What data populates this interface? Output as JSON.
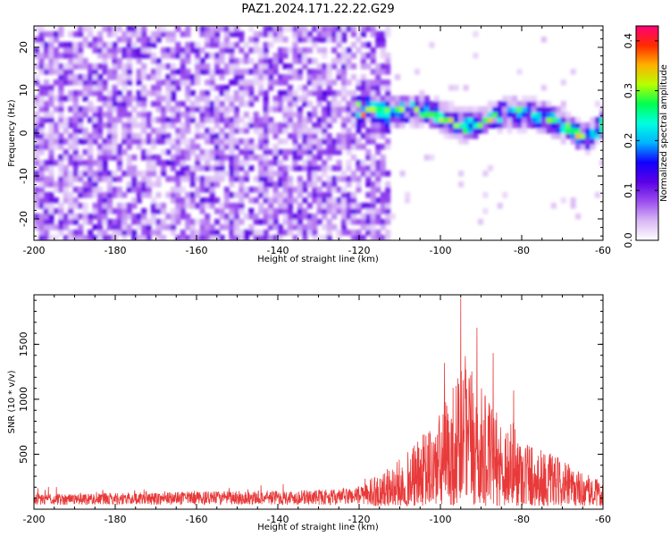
{
  "title": "PAZ1.2024.171.22.22.G29",
  "colors": {
    "line": "#e83a3a",
    "colormap": [
      "#ffffff",
      "#d9b8f5",
      "#9b4df0",
      "#5a00e6",
      "#1200ff",
      "#00b4ff",
      "#00ffe0",
      "#00ff50",
      "#b8ff00",
      "#ffb000",
      "#ff2a00",
      "#ff007a"
    ]
  },
  "chart_data": [
    {
      "type": "heatmap",
      "xlabel": "Height of straight line (km)",
      "ylabel": "Frequency (Hz)",
      "xlim": [
        -200,
        -60
      ],
      "ylim": [
        -25,
        25
      ],
      "x_ticks": [
        -200,
        -180,
        -160,
        -140,
        -120,
        -100,
        -80,
        -60
      ],
      "y_ticks": [
        20,
        10,
        0,
        -10,
        -20
      ],
      "colorbar": {
        "label": "Normalized spectral amplitude",
        "range": [
          0.0,
          0.43
        ],
        "ticks": [
          "0.0",
          "0.1",
          "0.2",
          "0.3",
          "0.4"
        ]
      },
      "description_points": {
        "noise_region_x": [
          -200,
          -113
        ],
        "signal_ridge": [
          {
            "x": -120,
            "y": 5
          },
          {
            "x": -115,
            "y": 4
          },
          {
            "x": -105,
            "y": 5
          },
          {
            "x": -100,
            "y": 3
          },
          {
            "x": -95,
            "y": 1
          },
          {
            "x": -90,
            "y": 2
          },
          {
            "x": -85,
            "y": 4
          },
          {
            "x": -80,
            "y": 4
          },
          {
            "x": -75,
            "y": 3
          },
          {
            "x": -70,
            "y": 1
          },
          {
            "x": -65,
            "y": -2
          },
          {
            "x": -60,
            "y": 2
          }
        ]
      }
    },
    {
      "type": "line",
      "xlabel": "Height of straight line (km)",
      "ylabel": "SNR (10 * v/v)",
      "xlim": [
        -200,
        -60
      ],
      "ylim": [
        0,
        1950
      ],
      "x_ticks": [
        -200,
        -180,
        -160,
        -140,
        -120,
        -100,
        -80,
        -60
      ],
      "y_ticks": [
        500,
        1000,
        1500
      ],
      "series": [
        {
          "envelope": [
            {
              "x": -200,
              "y": 130
            },
            {
              "x": -180,
              "y": 140
            },
            {
              "x": -160,
              "y": 150
            },
            {
              "x": -140,
              "y": 160
            },
            {
              "x": -125,
              "y": 170
            },
            {
              "x": -118,
              "y": 220
            },
            {
              "x": -112,
              "y": 330
            },
            {
              "x": -106,
              "y": 520
            },
            {
              "x": -100,
              "y": 780
            },
            {
              "x": -96,
              "y": 1100
            },
            {
              "x": -94,
              "y": 1250
            },
            {
              "x": -91,
              "y": 1050
            },
            {
              "x": -87,
              "y": 800
            },
            {
              "x": -82,
              "y": 700
            },
            {
              "x": -77,
              "y": 520
            },
            {
              "x": -70,
              "y": 380
            },
            {
              "x": -65,
              "y": 280
            },
            {
              "x": -60,
              "y": 200
            }
          ],
          "peaks": [
            {
              "x": -95,
              "y": 1920
            },
            {
              "x": -91,
              "y": 1650
            },
            {
              "x": -99,
              "y": 1330
            },
            {
              "x": -87,
              "y": 1420
            },
            {
              "x": -94,
              "y": 1180
            },
            {
              "x": -82,
              "y": 1080
            }
          ]
        }
      ]
    }
  ]
}
